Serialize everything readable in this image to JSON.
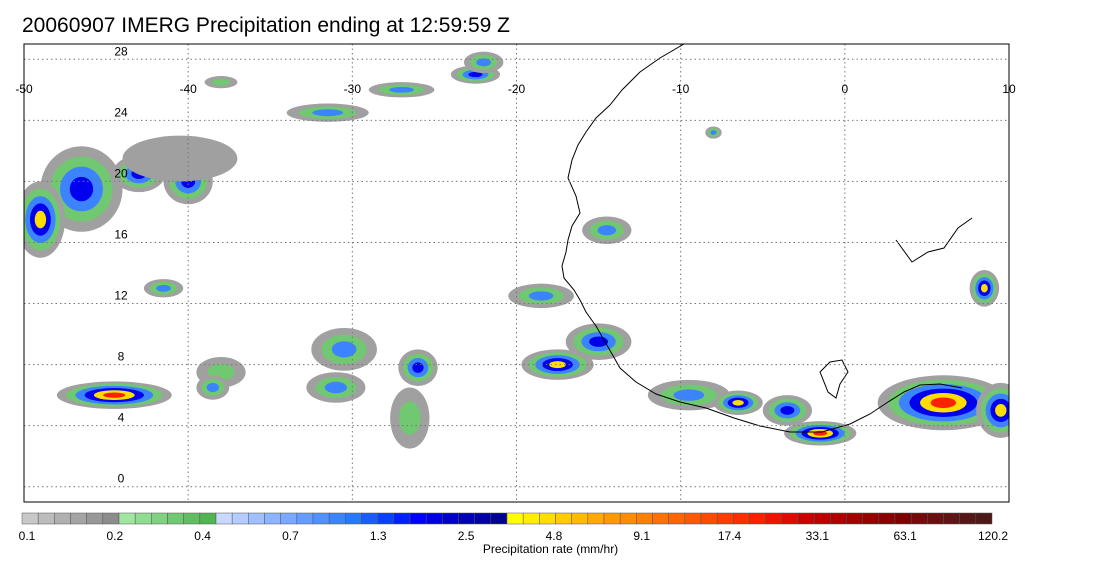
{
  "title": "20060907 IMERG Precipitation ending at 12:59:59 Z",
  "map": {
    "lon_range": [
      -50,
      10
    ],
    "lat_range": [
      -1,
      29
    ],
    "lon_ticks": [
      "-50",
      "-40",
      "-30",
      "-20",
      "-10",
      "0",
      "10"
    ],
    "lat_ticks": [
      "28",
      "24",
      "20",
      "16",
      "12",
      "8",
      "4",
      "0"
    ],
    "gridlines": "dotted",
    "precip_cells": [
      {
        "lon": -44.5,
        "lat": 6.0,
        "rx": 3.5,
        "ry": 0.9,
        "level": 5
      },
      {
        "lon": -46.5,
        "lat": 19.5,
        "rx": 2.5,
        "ry": 2.8,
        "level": 3
      },
      {
        "lon": -49.0,
        "lat": 17.5,
        "rx": 1.5,
        "ry": 2.5,
        "level": 4
      },
      {
        "lon": -40.0,
        "lat": 20.0,
        "rx": 1.5,
        "ry": 1.5,
        "level": 3
      },
      {
        "lon": -43.0,
        "lat": 20.5,
        "rx": 1.6,
        "ry": 1.2,
        "level": 3
      },
      {
        "lon": -30.5,
        "lat": 9.0,
        "rx": 2.0,
        "ry": 1.4,
        "level": 2
      },
      {
        "lon": -26.0,
        "lat": 7.8,
        "rx": 1.2,
        "ry": 1.2,
        "level": 3
      },
      {
        "lon": -31.0,
        "lat": 6.5,
        "rx": 1.8,
        "ry": 1.0,
        "level": 2
      },
      {
        "lon": -26.5,
        "lat": 4.5,
        "rx": 1.2,
        "ry": 2.0,
        "level": 1
      },
      {
        "lon": -17.5,
        "lat": 8.0,
        "rx": 2.2,
        "ry": 1.0,
        "level": 4
      },
      {
        "lon": -15.0,
        "lat": 9.5,
        "rx": 2.0,
        "ry": 1.2,
        "level": 3
      },
      {
        "lon": -18.5,
        "lat": 12.5,
        "rx": 2.0,
        "ry": 0.8,
        "level": 2
      },
      {
        "lon": -14.5,
        "lat": 16.8,
        "rx": 1.5,
        "ry": 0.9,
        "level": 2
      },
      {
        "lon": -9.5,
        "lat": 6.0,
        "rx": 2.5,
        "ry": 1.0,
        "level": 2
      },
      {
        "lon": -6.5,
        "lat": 5.5,
        "rx": 1.5,
        "ry": 0.8,
        "level": 4
      },
      {
        "lon": -3.5,
        "lat": 5.0,
        "rx": 1.5,
        "ry": 1.0,
        "level": 3
      },
      {
        "lon": -1.5,
        "lat": 3.5,
        "rx": 2.2,
        "ry": 0.8,
        "level": 5
      },
      {
        "lon": 6.0,
        "lat": 5.5,
        "rx": 4.0,
        "ry": 1.8,
        "level": 5
      },
      {
        "lon": 9.5,
        "lat": 5.0,
        "rx": 1.5,
        "ry": 1.8,
        "level": 4
      },
      {
        "lon": 8.5,
        "lat": 13.0,
        "rx": 0.9,
        "ry": 1.2,
        "level": 4
      },
      {
        "lon": -31.5,
        "lat": 24.5,
        "rx": 2.5,
        "ry": 0.6,
        "level": 2
      },
      {
        "lon": -27.0,
        "lat": 26.0,
        "rx": 2.0,
        "ry": 0.5,
        "level": 2
      },
      {
        "lon": -22.5,
        "lat": 27.0,
        "rx": 1.5,
        "ry": 0.6,
        "level": 3
      },
      {
        "lon": -22.0,
        "lat": 27.8,
        "rx": 1.2,
        "ry": 0.7,
        "level": 2
      },
      {
        "lon": -38.0,
        "lat": 26.5,
        "rx": 1.0,
        "ry": 0.4,
        "level": 1
      },
      {
        "lon": -41.5,
        "lat": 13.0,
        "rx": 1.2,
        "ry": 0.6,
        "level": 2
      },
      {
        "lon": -8.0,
        "lat": 23.2,
        "rx": 0.5,
        "ry": 0.4,
        "level": 2
      },
      {
        "lon": -38.0,
        "lat": 7.5,
        "rx": 1.5,
        "ry": 1.0,
        "level": 1
      },
      {
        "lon": -38.5,
        "lat": 6.5,
        "rx": 1.0,
        "ry": 0.8,
        "level": 2
      },
      {
        "lon": -40.5,
        "lat": 21.5,
        "rx": 3.5,
        "ry": 1.5,
        "level": 0
      }
    ]
  },
  "colorbar": {
    "label": "Precipitation rate (mm/hr)",
    "tick_labels": [
      "0.1",
      "0.2",
      "0.4",
      "0.7",
      "1.3",
      "2.5",
      "4.8",
      "9.1",
      "17.4",
      "33.1",
      "63.1",
      "120.2"
    ],
    "colors": [
      "#c8c8c8",
      "#bcbcbc",
      "#b0b0b0",
      "#a4a4a4",
      "#989898",
      "#8c8c8c",
      "#a0e6a0",
      "#90dc90",
      "#80d280",
      "#70c870",
      "#60be60",
      "#50b450",
      "#c8d8ff",
      "#b4ccff",
      "#a0c0ff",
      "#8cb4ff",
      "#78a8ff",
      "#649cff",
      "#5090ff",
      "#3c84ff",
      "#2878ff",
      "#1a5cff",
      "#0a40ff",
      "#0020ff",
      "#0000ff",
      "#0000e6",
      "#0000cc",
      "#0000b8",
      "#0000a8",
      "#000098",
      "#ffff00",
      "#ffee00",
      "#ffdd00",
      "#ffcc00",
      "#ffbb00",
      "#ffaa00",
      "#ff9900",
      "#ff8c00",
      "#ff7f00",
      "#ff7200",
      "#ff6500",
      "#ff5800",
      "#ff4a00",
      "#ff3c00",
      "#ff2e00",
      "#ff2000",
      "#f01400",
      "#e00a00",
      "#cc0000",
      "#bf0000",
      "#b20000",
      "#a50000",
      "#980000",
      "#8b0000",
      "#7e0000",
      "#740a0a",
      "#6a1010",
      "#601414",
      "#561616",
      "#4c1818"
    ]
  },
  "level_colors": [
    "#a0a0a0",
    "#70c870",
    "#3c84ff",
    "#0000ee",
    "#ffdd00",
    "#ff2000"
  ]
}
